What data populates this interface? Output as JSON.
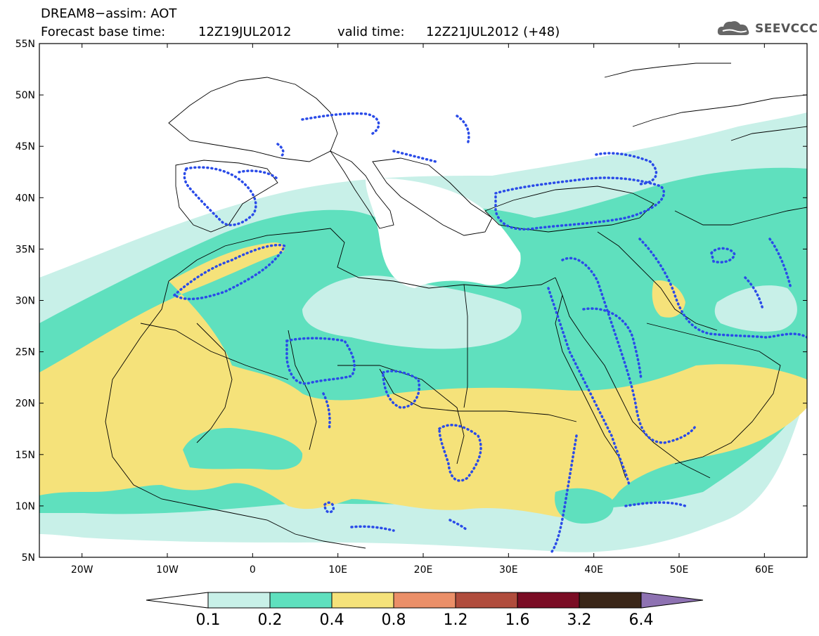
{
  "header": {
    "title": "DREAM8−assim: AOT",
    "base_label": "Forecast base time:",
    "base_value": "12Z19JUL2012",
    "valid_label": "valid time:",
    "valid_value": "12Z21JUL2012 (+48)"
  },
  "logo": {
    "text": "SEEVCCC",
    "icon": "cloud-icon"
  },
  "map": {
    "lat_labels": [
      "55N",
      "50N",
      "45N",
      "40N",
      "35N",
      "30N",
      "25N",
      "20N",
      "15N",
      "10N",
      "5N"
    ],
    "lon_labels": [
      "20W",
      "10W",
      "0",
      "10E",
      "20E",
      "30E",
      "40E",
      "50E",
      "60E"
    ],
    "lon_range": [
      -25,
      65
    ],
    "lat_range": [
      5,
      55
    ]
  },
  "colorbar": {
    "levels": [
      "0.1",
      "0.2",
      "0.4",
      "0.8",
      "1.2",
      "1.6",
      "3.2",
      "6.4"
    ],
    "colors": [
      "#c8f0e8",
      "#5fe0be",
      "#f5e27a",
      "#eb8f68",
      "#b04c3c",
      "#7a0c24",
      "#3a2618",
      "#8e72b2"
    ]
  },
  "colors": {
    "shade_0_1": "#c8f0e8",
    "shade_0_2": "#5fe0be",
    "shade_0_4": "#f5e27a",
    "contour": "#2a4be8"
  }
}
